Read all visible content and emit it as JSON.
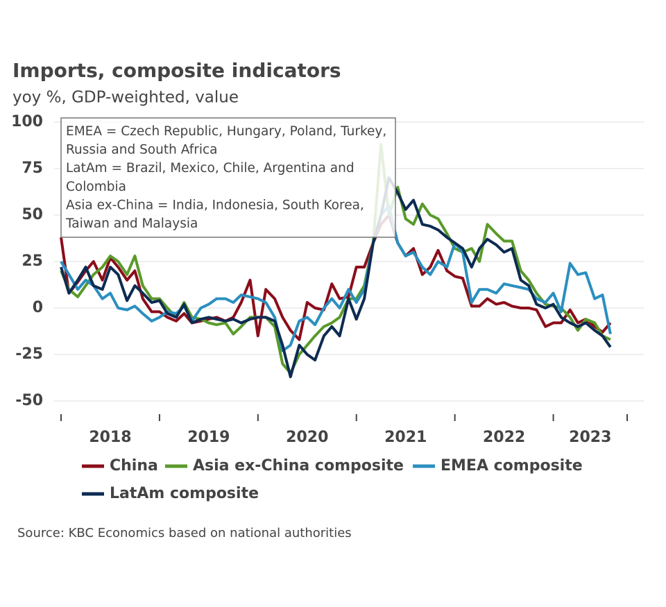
{
  "chart_data": {
    "type": "line",
    "title": "Imports, composite indicators",
    "subtitle": "yoy %, GDP-weighted, value",
    "annotation": [
      "EMEA = Czech Republic, Hungary, Poland, Turkey,",
      "Russia and South Africa",
      "LatAm = Brazil, Mexico, Chile, Argentina and",
      "Colombia",
      "Asia ex-China = India, Indonesia, South Korea,",
      "Taiwan and Malaysia"
    ],
    "source": "Source: KBC Economics based on national authorities",
    "x": [
      2018,
      2018.08,
      2018.17,
      2018.25,
      2018.33,
      2018.42,
      2018.5,
      2018.58,
      2018.67,
      2018.75,
      2018.83,
      2018.92,
      2019,
      2019.08,
      2019.17,
      2019.25,
      2019.33,
      2019.42,
      2019.5,
      2019.58,
      2019.67,
      2019.75,
      2019.83,
      2019.92,
      2020,
      2020.08,
      2020.17,
      2020.25,
      2020.33,
      2020.42,
      2020.5,
      2020.58,
      2020.67,
      2020.75,
      2020.83,
      2020.92,
      2021,
      2021.08,
      2021.17,
      2021.25,
      2021.33,
      2021.42,
      2021.5,
      2021.58,
      2021.67,
      2021.75,
      2021.83,
      2021.92,
      2022,
      2022.08,
      2022.17,
      2022.25,
      2022.33,
      2022.42,
      2022.5,
      2022.58,
      2022.67,
      2022.75,
      2022.83,
      2022.92,
      2023,
      2023.08,
      2023.17,
      2023.25,
      2023.33,
      2023.42,
      2023.5,
      2023.58
    ],
    "xlim": [
      2018,
      2023.75
    ],
    "xticks": [
      {
        "value": 2018,
        "label": "2018"
      },
      {
        "value": 2019,
        "label": "2019"
      },
      {
        "value": 2020,
        "label": "2020"
      },
      {
        "value": 2021,
        "label": "2021"
      },
      {
        "value": 2022,
        "label": "2022"
      },
      {
        "value": 2023,
        "label": "2023"
      }
    ],
    "ylim": [
      -50,
      100
    ],
    "yticks": [
      100,
      75,
      50,
      25,
      0,
      -25,
      -50
    ],
    "grid": true,
    "series": [
      {
        "name": "China",
        "color": "#8b0d1a",
        "values": [
          38,
          8,
          14,
          20,
          25,
          15,
          27,
          22,
          15,
          20,
          5,
          -2,
          -2,
          -5,
          -7,
          -3,
          -8,
          -7,
          -6,
          -5,
          -7,
          -5,
          3,
          15,
          -15,
          10,
          5,
          -5,
          -12,
          -17,
          3,
          0,
          -1,
          13,
          5,
          6,
          22,
          22,
          35,
          45,
          50,
          35,
          28,
          32,
          18,
          22,
          31,
          20,
          17,
          16,
          1,
          1,
          5,
          2,
          3,
          1,
          0,
          0,
          -1,
          -10,
          -8,
          -8,
          -1,
          -8,
          -6,
          -10,
          -13,
          -8
        ]
      },
      {
        "name": "Asia ex-China composite",
        "color": "#5a9a2a",
        "values": [
          20,
          10,
          6,
          12,
          18,
          22,
          28,
          25,
          18,
          28,
          12,
          5,
          5,
          0,
          -5,
          3,
          -5,
          -6,
          -8,
          -9,
          -8,
          -14,
          -10,
          -5,
          -5,
          -5,
          -10,
          -30,
          -35,
          -25,
          -20,
          -15,
          -10,
          -8,
          -5,
          5,
          5,
          12,
          35,
          88,
          50,
          65,
          48,
          45,
          56,
          50,
          48,
          40,
          32,
          30,
          32,
          25,
          45,
          40,
          36,
          36,
          20,
          15,
          8,
          2,
          1,
          0,
          -5,
          -12,
          -6,
          -8,
          -15,
          -17
        ]
      },
      {
        "name": "EMEA composite",
        "color": "#2a8fc0",
        "values": [
          25,
          18,
          10,
          15,
          12,
          5,
          8,
          0,
          -1,
          1,
          -3,
          -7,
          -5,
          -2,
          -3,
          1,
          -7,
          0,
          2,
          5,
          5,
          3,
          7,
          6,
          5,
          3,
          -5,
          -23,
          -20,
          -7,
          -5,
          -9,
          0,
          5,
          0,
          10,
          3,
          10,
          35,
          50,
          55,
          35,
          28,
          30,
          22,
          18,
          25,
          22,
          35,
          30,
          3,
          10,
          10,
          8,
          13,
          12,
          11,
          10,
          5,
          3,
          8,
          -2,
          24,
          18,
          19,
          5,
          7,
          -14
        ]
      },
      {
        "name": "LatAm composite",
        "color": "#0d2b52",
        "values": [
          22,
          8,
          15,
          22,
          12,
          10,
          22,
          18,
          4,
          12,
          8,
          3,
          4,
          -3,
          -5,
          2,
          -8,
          -6,
          -5,
          -6,
          -7,
          -6,
          -8,
          -6,
          -5,
          -5,
          -7,
          -20,
          -37,
          -20,
          -25,
          -28,
          -15,
          -10,
          -15,
          5,
          -6,
          5,
          35,
          50,
          70,
          62,
          53,
          58,
          45,
          44,
          42,
          38,
          35,
          32,
          22,
          32,
          37,
          34,
          30,
          32,
          15,
          12,
          2,
          0,
          2,
          -5,
          -8,
          -10,
          -8,
          -12,
          -15,
          -21
        ]
      }
    ]
  }
}
